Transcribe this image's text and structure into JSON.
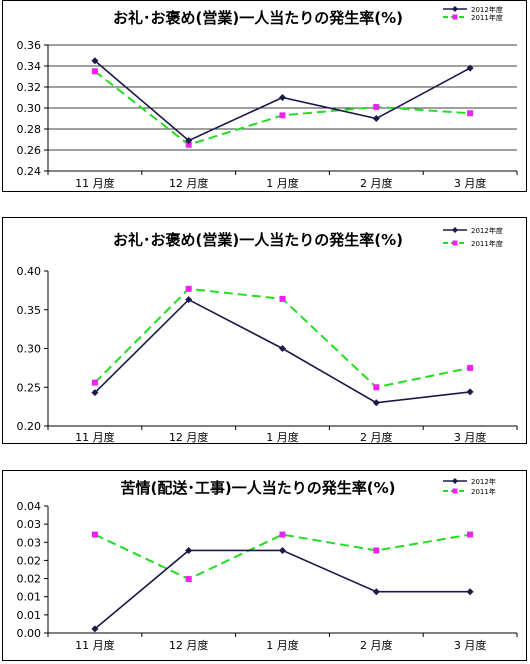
{
  "colors": {
    "series_2012": "#1a1a4a",
    "series_2011": "#22dd22",
    "marker_2011": "#ee22ee"
  },
  "chart_data": [
    {
      "type": "line",
      "title": "お礼･お褒め(営業)一人当たりの発生率(%)",
      "categories": [
        "11 月度",
        "12 月度",
        "1 月度",
        "2 月度",
        "3 月度"
      ],
      "ylim": [
        0.24,
        0.36
      ],
      "yticks": [
        "0.24",
        "0.26",
        "0.28",
        "0.30",
        "0.32",
        "0.34",
        "0.36"
      ],
      "grid": true,
      "legend_position": "top-right",
      "series": [
        {
          "name": "2012年度",
          "values": [
            0.345,
            0.269,
            0.31,
            0.29,
            0.338
          ]
        },
        {
          "name": "2011年度",
          "values": [
            0.335,
            0.265,
            0.293,
            0.301,
            0.295
          ]
        }
      ]
    },
    {
      "type": "line",
      "title": "お礼･お褒め(営業)一人当たりの発生率(%)",
      "categories": [
        "11 月度",
        "12 月度",
        "1 月度",
        "2 月度",
        "3 月度"
      ],
      "ylim": [
        0.2,
        0.4
      ],
      "yticks": [
        "0.20",
        "0.25",
        "0.30",
        "0.35",
        "0.40"
      ],
      "grid": false,
      "legend_position": "top-right",
      "series": [
        {
          "name": "2012年度",
          "values": [
            0.243,
            0.363,
            0.3,
            0.23,
            0.244
          ]
        },
        {
          "name": "2011年度",
          "values": [
            0.256,
            0.377,
            0.364,
            0.25,
            0.275
          ]
        }
      ]
    },
    {
      "type": "line",
      "title": "苦情(配送･工事)一人当たりの発生率(%)",
      "categories": [
        "11 月度",
        "12 月度",
        "1 月度",
        "2 月度",
        "3 月度"
      ],
      "ylim": [
        0.0,
        0.04
      ],
      "yticks": [
        "0.00",
        "0.01",
        "0.01",
        "0.02",
        "0.02",
        "0.03",
        "0.03",
        "0.04"
      ],
      "grid": false,
      "legend_position": "top-right",
      "series": [
        {
          "name": "2012年",
          "values": [
            0.0013,
            0.026,
            0.026,
            0.013,
            0.013
          ]
        },
        {
          "name": "2011年",
          "values": [
            0.031,
            0.017,
            0.031,
            0.026,
            0.031
          ]
        }
      ]
    }
  ]
}
